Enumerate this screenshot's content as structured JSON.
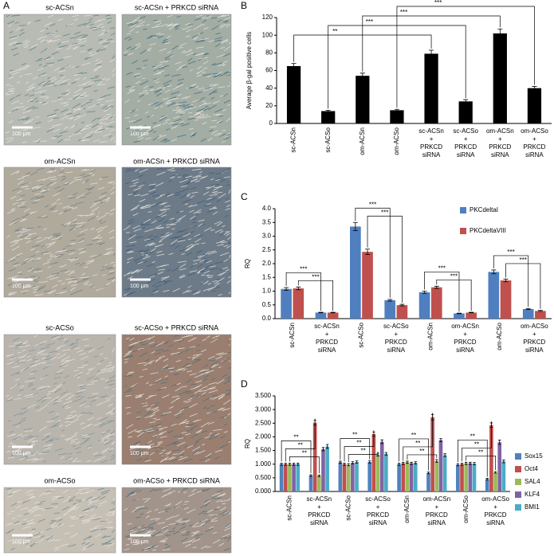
{
  "panel_a": {
    "label": "A",
    "images": [
      {
        "caption": "sc-ACSn",
        "scale": "100 μm"
      },
      {
        "caption": "sc-ACSn + PRKCD siRNA",
        "scale": "100 μm"
      },
      {
        "caption": "om-ACSn",
        "scale": "100 μm"
      },
      {
        "caption": "om-ACSn + PRKCD siRNA",
        "scale": "100 μm"
      },
      {
        "caption": "sc-ACSo",
        "scale": "100 μm"
      },
      {
        "caption": "sc-ACSo + PRKCD siRNA",
        "scale": "100 μm"
      },
      {
        "caption": "om-ACSo",
        "scale": "100 μm"
      },
      {
        "caption": "om-ACSo + PRKCD siRNA",
        "scale": "100 μm"
      }
    ]
  },
  "chart_data": [
    {
      "type": "bar",
      "panel": "B",
      "y_label": "Average β-gal positive cells",
      "categories": [
        [
          "sc-ACSn"
        ],
        [
          "sc-ACSo"
        ],
        [
          "om-ACSn"
        ],
        [
          "om-ACSo"
        ],
        [
          "sc-ACSn",
          "+",
          "PRKCD",
          "siRNA"
        ],
        [
          "sc-ACSo",
          "+",
          "PRKCD",
          "siRNA"
        ],
        [
          "om-ACSn",
          "+",
          "PRKCD",
          "siRNA"
        ],
        [
          "om-ACSo",
          "+",
          "PRKCD",
          "siRNA"
        ]
      ],
      "values": [
        65,
        14,
        54,
        15,
        79,
        25,
        102,
        40
      ],
      "errors": [
        3,
        1,
        3,
        1,
        4,
        2,
        5,
        2
      ],
      "color": "#000000",
      "ylim": [
        0,
        120
      ],
      "yticks": [
        0,
        20,
        40,
        60,
        80,
        100,
        120
      ],
      "significance": [
        {
          "pair": [
            0,
            4
          ],
          "labels": [
            "**"
          ]
        },
        {
          "pair": [
            1,
            5
          ],
          "labels": [
            "***"
          ]
        },
        {
          "pair": [
            2,
            6
          ],
          "labels": [
            "***"
          ]
        },
        {
          "pair": [
            3,
            7
          ],
          "labels": [
            "***"
          ]
        }
      ]
    },
    {
      "type": "bar",
      "panel": "C",
      "y_label": "RQ",
      "legend": "upper-right",
      "categories": [
        [
          "sc-ACSn"
        ],
        [
          "sc-ACSn",
          "+",
          "PRKCD",
          "siRNA"
        ],
        [
          "sc-ACSo"
        ],
        [
          "sc-ACSo",
          "+",
          "PRKCD",
          "siRNA"
        ],
        [
          "om-ACSn"
        ],
        [
          "om-ACSn",
          "+",
          "PRKCD",
          "siRNA"
        ],
        [
          "om-ACSo"
        ],
        [
          "om-ACSo",
          "+",
          "PRKCD",
          "siRNA"
        ]
      ],
      "series": [
        {
          "name": "PKCdeltaI",
          "color": "#4f7fbf",
          "values": [
            1.08,
            0.22,
            3.35,
            0.67,
            0.96,
            0.19,
            1.7,
            0.35
          ],
          "errors": [
            0.05,
            0.01,
            0.15,
            0.03,
            0.04,
            0.01,
            0.07,
            0.02
          ]
        },
        {
          "name": "PKCdeltaVIII",
          "color": "#c0504d",
          "values": [
            1.1,
            0.22,
            2.43,
            0.49,
            1.14,
            0.22,
            1.39,
            0.28
          ],
          "errors": [
            0.05,
            0.01,
            0.1,
            0.03,
            0.04,
            0.01,
            0.05,
            0.02
          ]
        }
      ],
      "ylim": [
        0,
        4
      ],
      "yticks": [
        {
          "value": 0,
          "label": "0.0"
        },
        0.5,
        {
          "value": 1,
          "label": "1.0"
        },
        1.5,
        {
          "value": 2,
          "label": "2.0"
        },
        2.5,
        {
          "value": 3,
          "label": "3.0"
        },
        3.5,
        {
          "value": 4,
          "label": "4.0"
        }
      ],
      "significance": [
        {
          "pair": [
            0,
            1
          ],
          "labels": [
            "***",
            "***"
          ]
        },
        {
          "pair": [
            2,
            3
          ],
          "labels": [
            "***",
            "***"
          ]
        },
        {
          "pair": [
            4,
            5
          ],
          "labels": [
            "***",
            "***"
          ]
        },
        {
          "pair": [
            6,
            7
          ],
          "labels": [
            "***",
            "***"
          ]
        }
      ]
    },
    {
      "type": "bar",
      "panel": "D",
      "y_label": "RQ",
      "legend": "right",
      "categories": [
        [
          "sc-ACSn"
        ],
        [
          "sc-ACSn",
          "+",
          "PRKCD",
          "siRNA"
        ],
        [
          "sc-ACSo"
        ],
        [
          "sc-ACSo",
          "+",
          "PRKCD",
          "siRNA"
        ],
        [
          "om-ACSn"
        ],
        [
          "om-ACSn",
          "+",
          "PRKCD",
          "siRNA"
        ],
        [
          "om-ACSo"
        ],
        [
          "om-ACSo",
          "+",
          "PRKCD",
          "siRNA"
        ]
      ],
      "series": [
        {
          "name": "Sox15",
          "color": "#4f81bd",
          "values": [
            1.0,
            0.58,
            1.07,
            1.08,
            1.0,
            0.68,
            0.98,
            0.45
          ],
          "errors": [
            0.04,
            0.03,
            0.04,
            0.04,
            0.04,
            0.03,
            0.04,
            0.03
          ]
        },
        {
          "name": "Oct4",
          "color": "#c0504d",
          "values": [
            1.0,
            2.52,
            1.0,
            2.1,
            1.03,
            2.72,
            1.0,
            2.43
          ],
          "errors": [
            0.04,
            0.09,
            0.04,
            0.08,
            0.04,
            0.1,
            0.04,
            0.08
          ]
        },
        {
          "name": "SAL4",
          "color": "#9bbb59",
          "values": [
            1.0,
            0.57,
            0.98,
            1.35,
            1.07,
            1.12,
            1.03,
            0.7
          ],
          "errors": [
            0.04,
            0.03,
            0.04,
            0.05,
            0.04,
            0.05,
            0.04,
            0.03
          ]
        },
        {
          "name": "KLF4",
          "color": "#8064a2",
          "values": [
            1.0,
            1.55,
            1.05,
            1.82,
            1.03,
            1.88,
            1.03,
            1.8
          ],
          "errors": [
            0.04,
            0.06,
            0.04,
            0.07,
            0.04,
            0.06,
            0.04,
            0.08
          ]
        },
        {
          "name": "BMI1",
          "color": "#4bacc6",
          "values": [
            1.0,
            1.65,
            1.08,
            1.38,
            1.05,
            1.33,
            1.02,
            1.1
          ],
          "errors": [
            0.04,
            0.07,
            0.04,
            0.05,
            0.04,
            0.05,
            0.04,
            0.05
          ]
        }
      ],
      "ylim": [
        0,
        3.5
      ],
      "yticks": [
        {
          "value": 0,
          "label": "0.000"
        },
        {
          "value": 0.5,
          "label": "0.500"
        },
        {
          "value": 1,
          "label": "1.000"
        },
        {
          "value": 1.5,
          "label": "1.500"
        },
        {
          "value": 2,
          "label": "2.000"
        },
        {
          "value": 2.5,
          "label": "2.500"
        },
        {
          "value": 3,
          "label": "3.000"
        },
        {
          "value": 3.5,
          "label": "3.500"
        }
      ],
      "significance": [
        {
          "pair": [
            0,
            1
          ],
          "labels": [
            "**",
            "**",
            "**"
          ]
        },
        {
          "pair": [
            2,
            3
          ],
          "labels": [
            "**",
            "**",
            "**"
          ]
        },
        {
          "pair": [
            4,
            5
          ],
          "labels": [
            "**",
            "**",
            "**"
          ]
        },
        {
          "pair": [
            6,
            7
          ],
          "labels": [
            "**",
            "**",
            "**"
          ]
        }
      ]
    }
  ]
}
